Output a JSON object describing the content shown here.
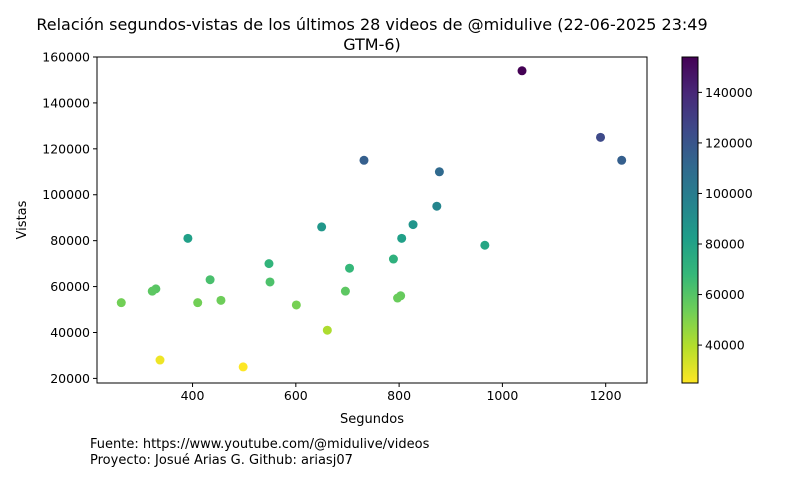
{
  "chart_data": {
    "type": "scatter",
    "title_line1": "Relación segundos-vistas de los últimos 28 videos de @midulive (22-06-2025 23:49",
    "title_line2": "GTM-6)",
    "xlabel": "Segundos",
    "ylabel": "Vistas",
    "xlim": [
      215,
      1280
    ],
    "ylim": [
      18000,
      160000
    ],
    "xticks": [
      400,
      600,
      800,
      1000,
      1200
    ],
    "yticks": [
      20000,
      40000,
      60000,
      80000,
      100000,
      120000,
      140000,
      160000
    ],
    "colorbar": {
      "colormap": "viridis_r",
      "range": [
        25000,
        154000
      ],
      "ticks": [
        40000,
        60000,
        80000,
        100000,
        120000,
        140000
      ]
    },
    "grid": false,
    "points": [
      {
        "x": 1038,
        "y": 154000
      },
      {
        "x": 1190,
        "y": 125000
      },
      {
        "x": 1231,
        "y": 115000
      },
      {
        "x": 732,
        "y": 115000
      },
      {
        "x": 878,
        "y": 110000
      },
      {
        "x": 873,
        "y": 95000
      },
      {
        "x": 827,
        "y": 87000
      },
      {
        "x": 650,
        "y": 86000
      },
      {
        "x": 805,
        "y": 81000
      },
      {
        "x": 391,
        "y": 81000
      },
      {
        "x": 966,
        "y": 78000
      },
      {
        "x": 789,
        "y": 72000
      },
      {
        "x": 548,
        "y": 70000
      },
      {
        "x": 704,
        "y": 68000
      },
      {
        "x": 434,
        "y": 63000
      },
      {
        "x": 550,
        "y": 62000
      },
      {
        "x": 329,
        "y": 59000
      },
      {
        "x": 322,
        "y": 58000
      },
      {
        "x": 696,
        "y": 58000
      },
      {
        "x": 803,
        "y": 56000
      },
      {
        "x": 797,
        "y": 55000
      },
      {
        "x": 455,
        "y": 54000
      },
      {
        "x": 262,
        "y": 53000
      },
      {
        "x": 410,
        "y": 53000
      },
      {
        "x": 601,
        "y": 52000
      },
      {
        "x": 661,
        "y": 41000
      },
      {
        "x": 337,
        "y": 28000
      },
      {
        "x": 498,
        "y": 25000
      }
    ]
  },
  "footer": {
    "line1": "Fuente: https://www.youtube.com/@midulive/videos",
    "line2": "Proyecto: Josué Arias G. Github: ariasj07"
  }
}
